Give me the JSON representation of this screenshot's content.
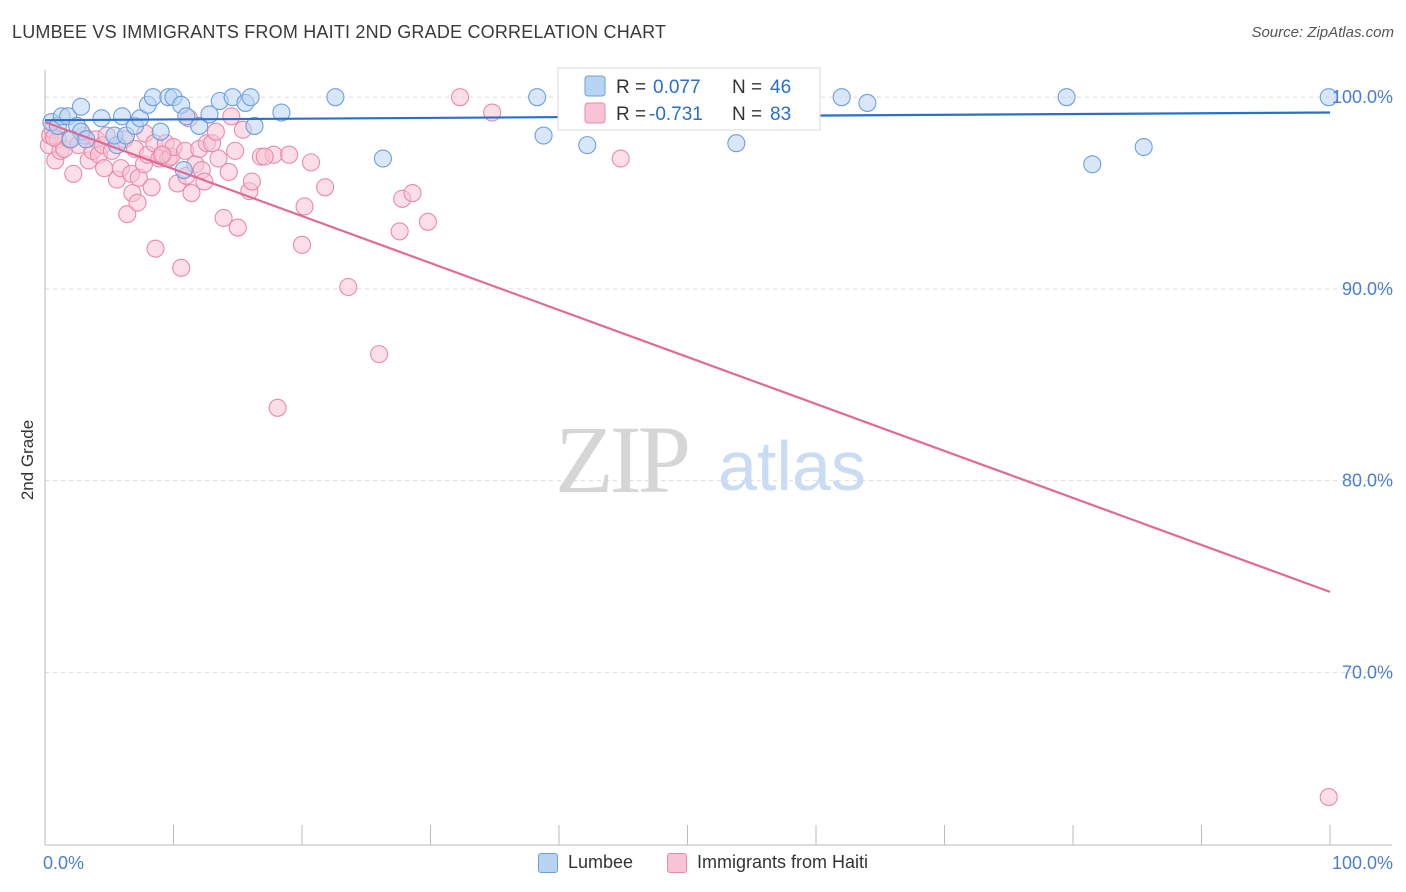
{
  "title": "LUMBEE VS IMMIGRANTS FROM HAITI 2ND GRADE CORRELATION CHART",
  "source": "Source: ZipAtlas.com",
  "watermark": {
    "zip": "ZIP",
    "atlas": "atlas"
  },
  "colors": {
    "blue_fill": "#b9d3f3",
    "blue_stroke": "#6d9fe0",
    "blue_line": "#2a6fcc",
    "pink_fill": "#f8c3d4",
    "pink_stroke": "#e98aab",
    "pink_line": "#e06a96",
    "axis_label": "#4a7fd0",
    "grid": "#dddddd"
  },
  "stats_legend": [
    {
      "r_label": "R =",
      "r_value": "0.077",
      "n_label": "N =",
      "n_value": "46",
      "series": "blue"
    },
    {
      "r_label": "R =",
      "r_value": "-0.731",
      "n_label": "N =",
      "n_value": "83",
      "series": "pink"
    }
  ],
  "chart_data": {
    "type": "scatter",
    "title": "LUMBEE VS IMMIGRANTS FROM HAITI 2ND GRADE CORRELATION CHART",
    "xlabel": "",
    "ylabel": "2nd Grade",
    "xlim": [
      0,
      100
    ],
    "ylim": [
      61,
      101
    ],
    "x_tick_labels": [
      "0.0%",
      "100.0%"
    ],
    "y_ticks": [
      70,
      80,
      90,
      100
    ],
    "y_tick_labels": [
      "70.0%",
      "80.0%",
      "90.0%",
      "100.0%"
    ],
    "grid": true,
    "legend": "bottom",
    "series": [
      {
        "name": "Lumbee",
        "color": "blue",
        "trend": {
          "x": [
            0,
            100
          ],
          "y": [
            98.8,
            99.2
          ]
        },
        "points": [
          [
            0.5,
            98.7
          ],
          [
            1.0,
            98.5
          ],
          [
            1.3,
            99.0
          ],
          [
            1.8,
            99.0
          ],
          [
            2.5,
            98.5
          ],
          [
            2.8,
            98.2
          ],
          [
            2.0,
            97.8
          ],
          [
            2.8,
            99.5
          ],
          [
            3.2,
            97.8
          ],
          [
            4.4,
            98.9
          ],
          [
            5.6,
            97.5
          ],
          [
            5.4,
            98.0
          ],
          [
            6.0,
            99.0
          ],
          [
            6.3,
            98.0
          ],
          [
            7.0,
            98.5
          ],
          [
            7.4,
            98.9
          ],
          [
            8.0,
            99.6
          ],
          [
            8.4,
            100.0
          ],
          [
            9.0,
            98.2
          ],
          [
            9.6,
            100.0
          ],
          [
            10.0,
            100.0
          ],
          [
            10.6,
            99.6
          ],
          [
            10.8,
            96.2
          ],
          [
            11.0,
            99.0
          ],
          [
            12.0,
            98.5
          ],
          [
            12.8,
            99.1
          ],
          [
            13.6,
            99.8
          ],
          [
            14.6,
            100.0
          ],
          [
            15.6,
            99.7
          ],
          [
            16.0,
            100.0
          ],
          [
            16.3,
            98.5
          ],
          [
            18.4,
            99.2
          ],
          [
            22.6,
            100.0
          ],
          [
            26.3,
            96.8
          ],
          [
            38.3,
            100.0
          ],
          [
            38.8,
            98.0
          ],
          [
            42.2,
            97.5
          ],
          [
            44.2,
            100.0
          ],
          [
            53.8,
            97.6
          ],
          [
            54.0,
            100.0
          ],
          [
            62.0,
            100.0
          ],
          [
            64.0,
            99.7
          ],
          [
            79.5,
            100.0
          ],
          [
            81.5,
            96.5
          ],
          [
            85.5,
            97.4
          ],
          [
            99.9,
            100.0
          ]
        ]
      },
      {
        "name": "Immigrants from Haiti",
        "color": "pink",
        "trend": {
          "x": [
            0,
            100
          ],
          "y": [
            98.7,
            74.2
          ]
        },
        "points": [
          [
            0.3,
            97.5
          ],
          [
            0.4,
            98.0
          ],
          [
            0.6,
            98.3
          ],
          [
            0.8,
            96.7
          ],
          [
            1.0,
            97.8
          ],
          [
            1.2,
            97.2
          ],
          [
            1.5,
            97.3
          ],
          [
            1.9,
            97.8
          ],
          [
            2.2,
            96.0
          ],
          [
            2.6,
            97.5
          ],
          [
            3.0,
            98.0
          ],
          [
            3.4,
            96.7
          ],
          [
            3.7,
            97.2
          ],
          [
            4.0,
            97.8
          ],
          [
            4.2,
            97.0
          ],
          [
            4.5,
            97.5
          ],
          [
            4.8,
            98.0
          ],
          [
            4.6,
            96.3
          ],
          [
            5.2,
            97.2
          ],
          [
            5.6,
            95.7
          ],
          [
            5.9,
            96.3
          ],
          [
            6.2,
            97.8
          ],
          [
            6.4,
            93.9
          ],
          [
            6.7,
            96.0
          ],
          [
            6.8,
            95.0
          ],
          [
            7.0,
            97.3
          ],
          [
            7.2,
            94.5
          ],
          [
            7.3,
            95.8
          ],
          [
            7.7,
            96.5
          ],
          [
            7.8,
            98.1
          ],
          [
            8.0,
            97.0
          ],
          [
            8.3,
            95.3
          ],
          [
            8.5,
            97.6
          ],
          [
            8.6,
            92.1
          ],
          [
            8.9,
            96.8
          ],
          [
            9.2,
            97.0
          ],
          [
            9.4,
            97.6
          ],
          [
            9.6,
            96.8
          ],
          [
            9.8,
            96.9
          ],
          [
            10.0,
            97.4
          ],
          [
            10.3,
            95.5
          ],
          [
            10.6,
            91.1
          ],
          [
            10.9,
            97.2
          ],
          [
            11.0,
            95.9
          ],
          [
            11.2,
            98.9
          ],
          [
            11.4,
            95.0
          ],
          [
            11.7,
            96.5
          ],
          [
            12.0,
            97.3
          ],
          [
            12.2,
            96.2
          ],
          [
            12.4,
            95.6
          ],
          [
            12.6,
            97.6
          ],
          [
            13.0,
            97.6
          ],
          [
            13.3,
            98.2
          ],
          [
            13.5,
            96.8
          ],
          [
            13.9,
            93.7
          ],
          [
            14.3,
            96.1
          ],
          [
            14.5,
            99.0
          ],
          [
            14.8,
            97.2
          ],
          [
            15.0,
            93.2
          ],
          [
            15.4,
            98.3
          ],
          [
            15.9,
            95.1
          ],
          [
            16.1,
            95.6
          ],
          [
            16.8,
            96.9
          ],
          [
            17.8,
            97.0
          ],
          [
            18.1,
            83.8
          ],
          [
            19.0,
            97.0
          ],
          [
            20.0,
            92.3
          ],
          [
            20.2,
            94.3
          ],
          [
            20.7,
            96.6
          ],
          [
            21.8,
            95.3
          ],
          [
            23.6,
            90.1
          ],
          [
            26.0,
            86.6
          ],
          [
            27.6,
            93.0
          ],
          [
            27.8,
            94.7
          ],
          [
            28.6,
            95.0
          ],
          [
            29.8,
            93.5
          ],
          [
            32.3,
            100.0
          ],
          [
            34.8,
            99.2
          ],
          [
            44.8,
            96.8
          ],
          [
            99.9,
            63.5
          ],
          [
            17.1,
            96.9
          ],
          [
            9.1,
            97.0
          ],
          [
            0.7,
            97.9
          ]
        ]
      }
    ]
  },
  "legend_labels": {
    "blue": "Lumbee",
    "pink": "Immigrants from Haiti"
  }
}
